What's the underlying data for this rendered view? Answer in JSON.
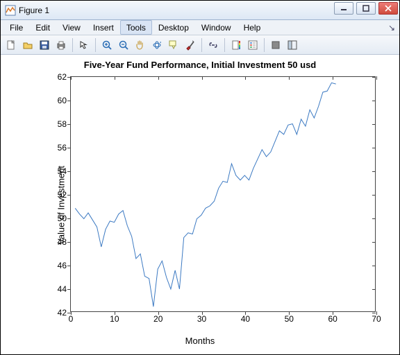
{
  "window": {
    "title": "Figure 1"
  },
  "menus": {
    "items": [
      "File",
      "Edit",
      "View",
      "Insert",
      "Tools",
      "Desktop",
      "Window",
      "Help"
    ],
    "active_index": 4,
    "dock_glyph": "↘"
  },
  "toolbar": {
    "icons": [
      "new",
      "open",
      "save",
      "print",
      "arrow",
      "zoom-in",
      "zoom-out",
      "pan",
      "rotate3d",
      "datatip",
      "brush",
      "link",
      "colorbar",
      "legend",
      "hide",
      "dock"
    ]
  },
  "chart": {
    "type": "line",
    "title": "Five-Year Fund Performance, Initial Investment 50 usd",
    "title_fontsize": 13,
    "xlabel": "Months",
    "ylabel": "Value of Investment",
    "label_fontsize": 13,
    "xlim": [
      0,
      70
    ],
    "ylim": [
      42,
      62
    ],
    "xticks": [
      0,
      10,
      20,
      30,
      40,
      50,
      60,
      70
    ],
    "yticks": [
      42,
      44,
      46,
      48,
      50,
      52,
      54,
      56,
      58,
      60,
      62
    ],
    "line_color": "#3b79c2",
    "line_width": 1,
    "background_color": "#ffffff",
    "axes_box_color": "#444444",
    "series": {
      "x": [
        1,
        2,
        3,
        4,
        5,
        6,
        7,
        8,
        9,
        10,
        11,
        12,
        13,
        14,
        15,
        16,
        17,
        18,
        19,
        20,
        21,
        22,
        23,
        24,
        25,
        26,
        27,
        28,
        29,
        30,
        31,
        32,
        33,
        34,
        35,
        36,
        37,
        38,
        39,
        40,
        41,
        42,
        43,
        44,
        45,
        46,
        47,
        48,
        49,
        50,
        51,
        52,
        53,
        54,
        55,
        56,
        57,
        58,
        59,
        60,
        61
      ],
      "y": [
        50.8,
        50.3,
        49.9,
        50.4,
        49.8,
        49.2,
        47.5,
        49.0,
        49.7,
        49.6,
        50.3,
        50.6,
        49.3,
        48.4,
        46.5,
        46.9,
        45.0,
        44.8,
        42.4,
        45.6,
        46.3,
        44.9,
        43.9,
        45.5,
        43.9,
        48.3,
        48.7,
        48.6,
        49.9,
        50.2,
        50.8,
        51.0,
        51.4,
        52.5,
        53.1,
        53.0,
        54.6,
        53.6,
        53.2,
        53.6,
        53.2,
        54.2,
        55.0,
        55.8,
        55.2,
        55.6,
        56.5,
        57.4,
        57.1,
        57.9,
        58.0,
        57.1,
        58.4,
        57.8,
        59.2,
        58.5,
        59.5,
        60.7,
        60.8,
        61.5,
        61.4
      ]
    }
  }
}
